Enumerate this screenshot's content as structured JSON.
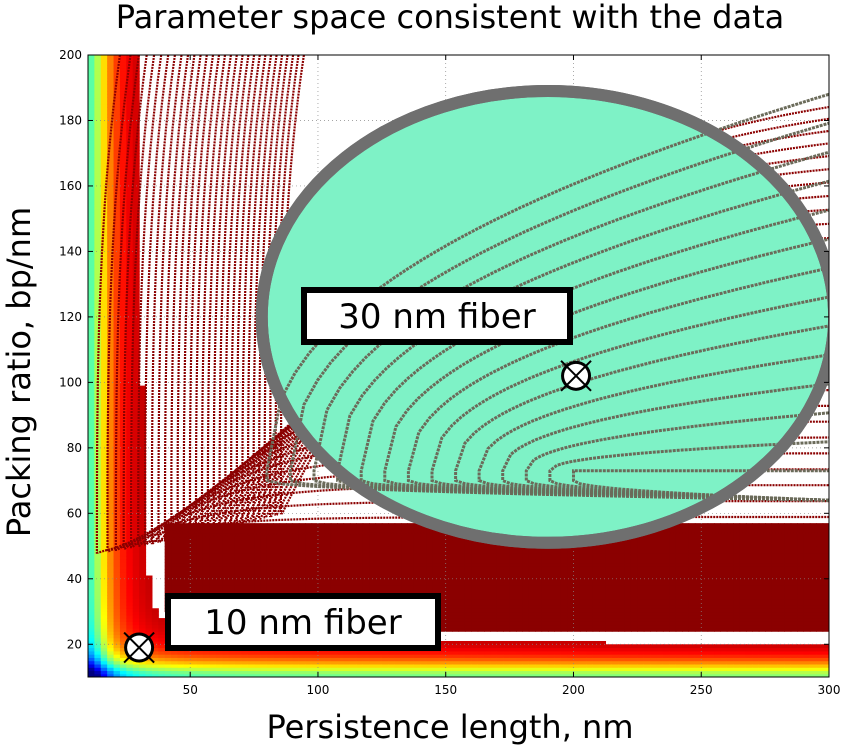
{
  "chart_data": {
    "type": "heatmap",
    "title": "Parameter space consistent with the data",
    "xlabel": "Persistence length, nm",
    "ylabel": "Packing ratio, bp/nm",
    "xlim": [
      10,
      300
    ],
    "ylim": [
      10,
      200
    ],
    "xticks": [
      50,
      100,
      150,
      200,
      250,
      300
    ],
    "yticks": [
      20,
      40,
      60,
      80,
      100,
      120,
      140,
      160,
      180,
      200
    ],
    "grid": true,
    "colormap": "jet",
    "contour_color": "#8b0000",
    "region": {
      "label": "30 nm fiber",
      "center": [
        190,
        120
      ],
      "radius": [
        112,
        69
      ],
      "fill": "#7ef2c6",
      "edge": "#6f6f6f"
    },
    "markers": [
      {
        "name": "10 nm fiber",
        "x": 30,
        "y": 19,
        "label": "10 nm fiber"
      },
      {
        "name": "30 nm fiber",
        "x": 201,
        "y": 102,
        "label": "30 nm fiber"
      }
    ]
  }
}
